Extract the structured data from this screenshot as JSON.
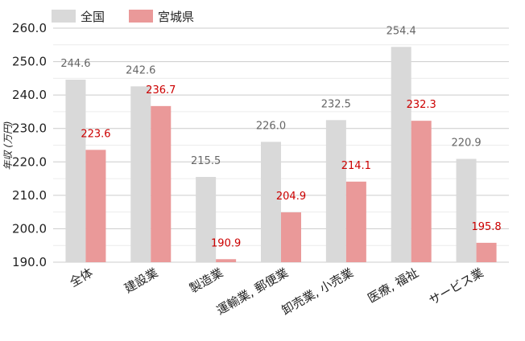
{
  "chart_data": {
    "type": "bar",
    "categories": [
      "全体",
      "建設業",
      "製造業",
      "運輸業, 郵便業",
      "卸売業, 小売業",
      "医療, 福祉",
      "サービス業"
    ],
    "series": [
      {
        "name": "全国",
        "values": [
          244.6,
          242.6,
          215.5,
          226.0,
          232.5,
          254.4,
          220.9
        ],
        "color": "#d9d9d9",
        "label_color": "#666666"
      },
      {
        "name": "宮城県",
        "values": [
          223.6,
          236.7,
          190.9,
          204.9,
          214.1,
          232.3,
          195.8
        ],
        "color": "#ea9999",
        "label_color": "#cc0000"
      }
    ],
    "ylabel": "年収 (万円)",
    "ylim": [
      190,
      260
    ],
    "yticks": [
      "190.0",
      "200.0",
      "210.0",
      "220.0",
      "230.0",
      "240.0",
      "250.0",
      "260.0"
    ],
    "grid": true,
    "legend_position": "top-left"
  }
}
